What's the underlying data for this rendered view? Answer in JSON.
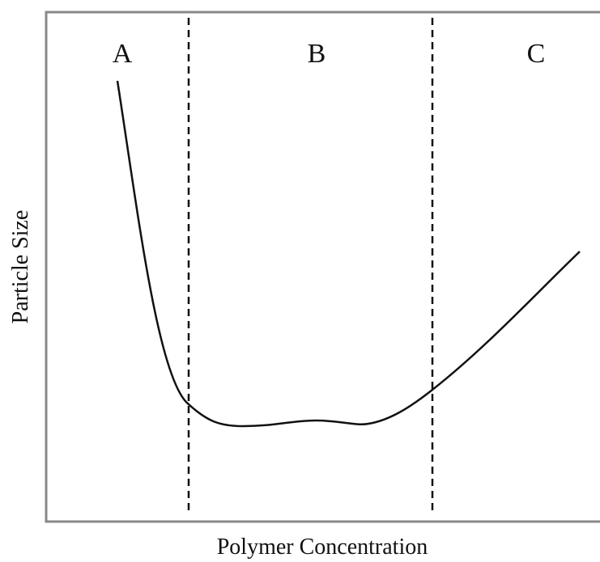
{
  "regions": [
    "A",
    "B",
    "C"
  ],
  "y_axis_label": "Particle Size",
  "x_axis_label": "Polymer Concentration"
}
